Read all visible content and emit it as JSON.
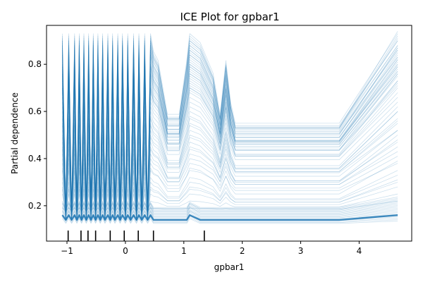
{
  "chart_data": {
    "type": "line",
    "title": "ICE Plot for gpbar1",
    "xlabel": "gpbar1",
    "ylabel": "Partial dependence",
    "xlim": [
      -1.35,
      4.9
    ],
    "ylim": [
      0.05,
      0.965
    ],
    "xticks": [
      -1,
      0,
      1,
      2,
      3,
      4
    ],
    "yticks": [
      0.2,
      0.4,
      0.6,
      0.8
    ],
    "xtick_labels": [
      "−1",
      "0",
      "1",
      "2",
      "3",
      "4"
    ],
    "ytick_labels": [
      "0.2",
      "0.4",
      "0.6",
      "0.8"
    ],
    "line_color": "#1f77b4",
    "line_alpha": 0.25,
    "grid": false,
    "x": [
      -1.08,
      -1.02,
      -0.97,
      -0.92,
      -0.87,
      -0.83,
      -0.79,
      -0.75,
      -0.71,
      -0.67,
      -0.63,
      -0.59,
      -0.55,
      -0.51,
      -0.47,
      -0.43,
      -0.39,
      -0.35,
      -0.3,
      -0.26,
      -0.22,
      -0.18,
      -0.13,
      -0.09,
      -0.05,
      0.0,
      0.04,
      0.09,
      0.14,
      0.19,
      0.23,
      0.28,
      0.33,
      0.38,
      0.43,
      0.48,
      0.56,
      0.72,
      0.92,
      1.05,
      1.1,
      1.28,
      1.5,
      1.62,
      1.72,
      1.8,
      1.88,
      2.3,
      3.0,
      3.66,
      4.66
    ],
    "pattern": [
      1.0,
      0.0,
      1.0,
      0.0,
      1.0,
      0.0,
      1.0,
      0.0,
      1.0,
      0.0,
      1.0,
      0.0,
      1.0,
      0.0,
      1.0,
      0.0,
      1.0,
      0.0,
      1.0,
      0.0,
      1.0,
      0.0,
      1.0,
      0.0,
      1.0,
      0.0,
      1.0,
      0.0,
      1.0,
      0.0,
      1.0,
      0.0,
      1.0,
      0.0,
      1.0,
      0.9,
      0.85,
      0.55,
      0.55,
      0.85,
      1.0,
      0.95,
      0.78,
      0.55,
      0.85,
      0.62,
      0.5,
      0.5,
      0.5,
      0.5,
      1.0
    ],
    "high_levels": [
      0.92,
      0.9,
      0.88,
      0.86,
      0.84,
      0.82,
      0.8,
      0.78,
      0.76,
      0.9,
      0.87,
      0.83,
      0.79,
      0.75,
      0.72,
      0.7,
      0.91,
      0.85,
      0.81,
      0.77,
      0.73,
      0.68,
      0.66,
      0.62,
      0.89,
      0.86,
      0.8,
      0.74,
      0.7,
      0.64,
      0.6,
      0.57,
      0.55,
      0.52,
      0.5,
      0.47,
      0.45,
      0.42,
      0.38,
      0.35,
      0.32,
      0.28,
      0.25,
      0.93,
      0.88,
      0.84,
      0.79,
      0.76,
      0.71,
      0.69,
      0.58,
      0.54,
      0.49,
      0.44,
      0.4,
      0.36,
      0.3,
      0.27,
      0.22,
      0.19
    ],
    "end_levels": [
      0.94,
      0.91,
      0.88,
      0.86,
      0.83,
      0.82,
      0.8,
      0.79,
      0.77,
      0.9,
      0.87,
      0.84,
      0.81,
      0.78,
      0.75,
      0.73,
      0.92,
      0.86,
      0.83,
      0.79,
      0.76,
      0.7,
      0.68,
      0.64,
      0.9,
      0.87,
      0.82,
      0.76,
      0.72,
      0.66,
      0.62,
      0.6,
      0.57,
      0.55,
      0.52,
      0.5,
      0.48,
      0.45,
      0.41,
      0.38,
      0.35,
      0.31,
      0.28,
      0.93,
      0.88,
      0.85,
      0.8,
      0.77,
      0.73,
      0.71,
      0.6,
      0.56,
      0.52,
      0.47,
      0.43,
      0.39,
      0.33,
      0.3,
      0.25,
      0.22
    ],
    "low_base": 0.14,
    "deciles": [
      -0.98,
      -0.76,
      -0.64,
      -0.51,
      -0.26,
      -0.02,
      0.22,
      0.48,
      1.35
    ]
  }
}
